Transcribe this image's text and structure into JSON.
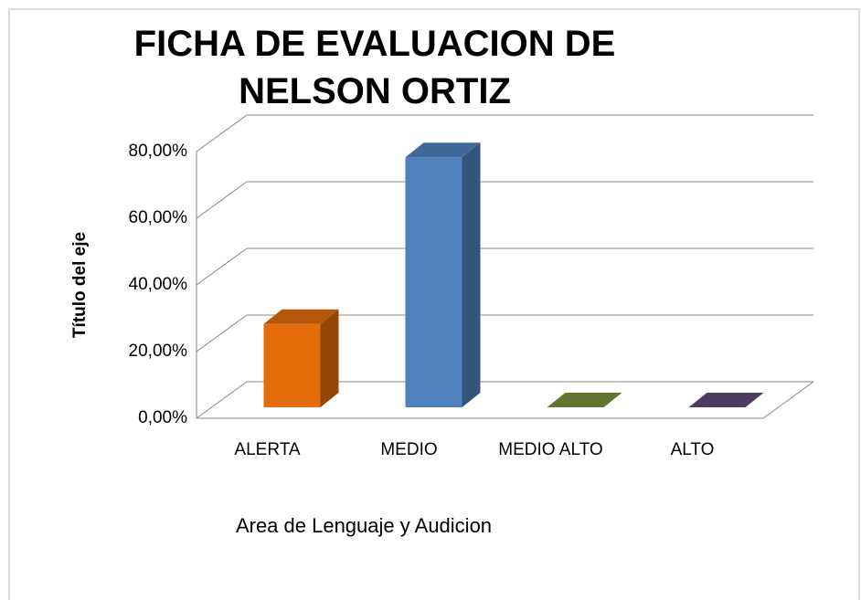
{
  "chart_data": {
    "type": "bar3d",
    "title": "FICHA DE EVALUACION DE NELSON ORTIZ",
    "y_label": "Título del eje",
    "x_label": "Area de Lenguaje y Audicion",
    "categories": [
      "ALERTA",
      "MEDIO",
      "MEDIO ALTO",
      "ALTO"
    ],
    "values": [
      25,
      75,
      0,
      0
    ],
    "colors": [
      "#e46c0a",
      "#4f81bd",
      "#77933c",
      "#604a7b"
    ],
    "ylim": [
      0,
      80
    ],
    "yticks": [
      {
        "value": 0,
        "label": "0,00%"
      },
      {
        "value": 20,
        "label": "20,00%"
      },
      {
        "value": 40,
        "label": "40,00%"
      },
      {
        "value": 60,
        "label": "60,00%"
      },
      {
        "value": 80,
        "label": "80,00%"
      }
    ],
    "grid": true
  }
}
